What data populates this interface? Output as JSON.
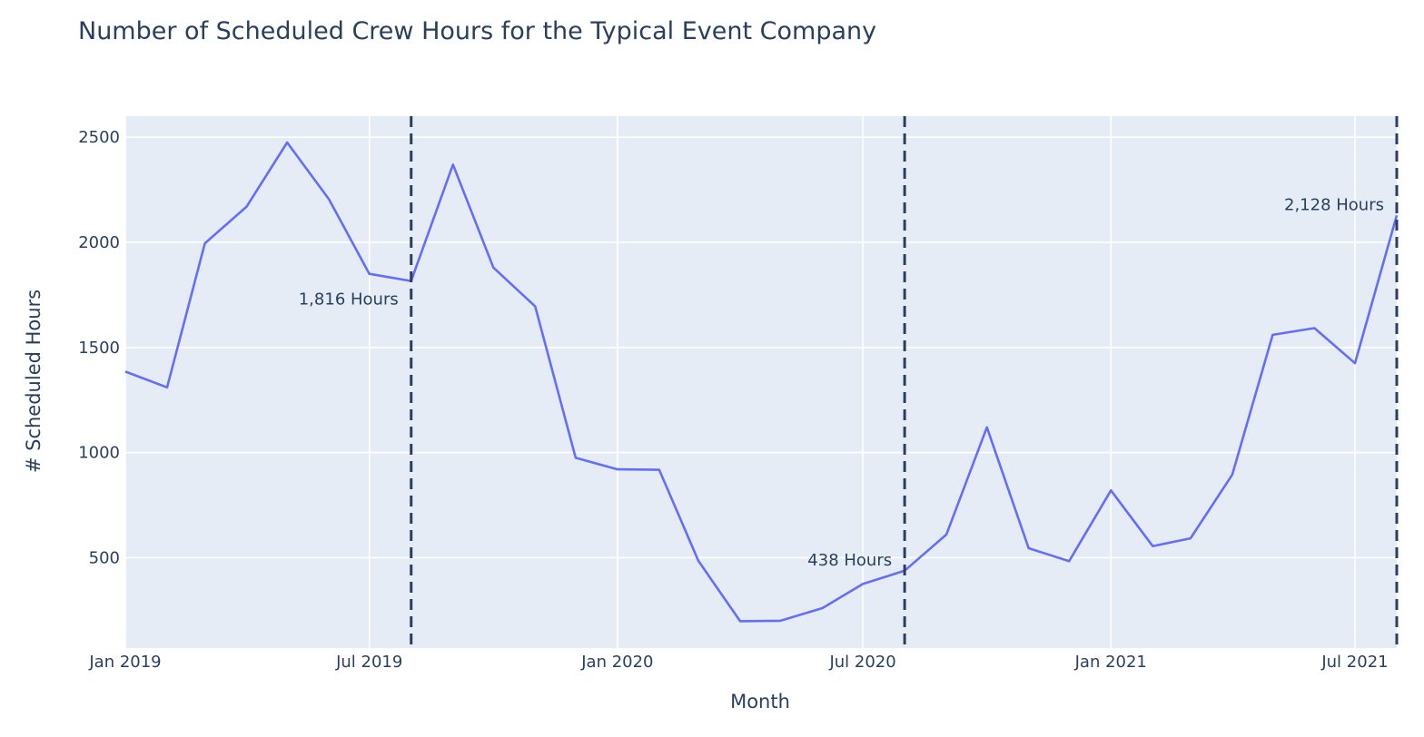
{
  "chart_data": {
    "type": "line",
    "title": "Number of Scheduled Crew Hours for the Typical Event Company",
    "xlabel": "Month",
    "ylabel": "# Scheduled Hours",
    "x_tick_labels": [
      {
        "date": "2019-01-01",
        "label": "Jan 2019"
      },
      {
        "date": "2019-07-01",
        "label": "Jul 2019"
      },
      {
        "date": "2020-01-01",
        "label": "Jan 2020"
      },
      {
        "date": "2020-07-01",
        "label": "Jul 2020"
      },
      {
        "date": "2021-01-01",
        "label": "Jan 2021"
      },
      {
        "date": "2021-07-01",
        "label": "Jul 2021"
      }
    ],
    "y_ticks": [
      500,
      1000,
      1500,
      2000,
      2500
    ],
    "xlim": [
      "2019-01-01",
      "2021-08-01"
    ],
    "ylim": [
      70,
      2600
    ],
    "grid": true,
    "line_color": "#636efa",
    "series": [
      {
        "x": [
          "2019-01-01",
          "2019-02-01",
          "2019-03-01",
          "2019-04-01",
          "2019-05-01",
          "2019-06-01",
          "2019-07-01",
          "2019-08-01",
          "2019-09-01",
          "2019-10-01",
          "2019-11-01",
          "2019-12-01",
          "2020-01-01",
          "2020-02-01",
          "2020-03-01",
          "2020-04-01",
          "2020-05-01",
          "2020-06-01",
          "2020-07-01",
          "2020-08-01",
          "2020-09-01",
          "2020-10-01",
          "2020-11-01",
          "2020-12-01",
          "2021-01-01",
          "2021-02-01",
          "2021-03-01",
          "2021-04-01",
          "2021-05-01",
          "2021-06-01",
          "2021-07-01",
          "2021-08-01"
        ],
        "y": [
          1385,
          1310,
          1995,
          2170,
          2475,
          2205,
          1850,
          1816,
          2370,
          1880,
          1695,
          975,
          920,
          918,
          485,
          198,
          200,
          260,
          375,
          438,
          610,
          1120,
          545,
          483,
          820,
          555,
          592,
          895,
          1560,
          1592,
          1425,
          2128
        ]
      }
    ],
    "vlines": [
      "2019-08-01",
      "2020-08-01",
      "2021-08-01"
    ],
    "annotations": [
      {
        "date": "2019-08-01",
        "value": 1816,
        "text": "1,816 Hours",
        "anchor": "below-left"
      },
      {
        "date": "2020-08-01",
        "value": 438,
        "text": "438 Hours",
        "anchor": "above-left"
      },
      {
        "date": "2021-08-01",
        "value": 2128,
        "text": "2,128 Hours",
        "anchor": "above-left"
      }
    ]
  }
}
